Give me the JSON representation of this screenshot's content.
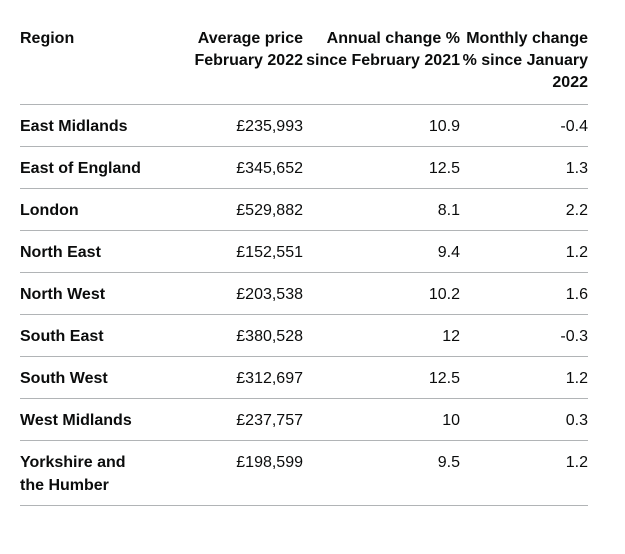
{
  "table": {
    "headers": {
      "region": "Region",
      "average_price": "Average price February 2022",
      "annual_change": "Annual change % since February 2021",
      "monthly_change": "Monthly change % since January 2022"
    },
    "rows": [
      {
        "region": "East Midlands",
        "average_price": "£235,993",
        "annual_change": "10.9",
        "monthly_change": "-0.4"
      },
      {
        "region": "East of England",
        "average_price": "£345,652",
        "annual_change": "12.5",
        "monthly_change": "1.3"
      },
      {
        "region": "London",
        "average_price": "£529,882",
        "annual_change": "8.1",
        "monthly_change": "2.2"
      },
      {
        "region": "North East",
        "average_price": "£152,551",
        "annual_change": "9.4",
        "monthly_change": "1.2"
      },
      {
        "region": "North West",
        "average_price": "£203,538",
        "annual_change": "10.2",
        "monthly_change": "1.6"
      },
      {
        "region": "South East",
        "average_price": "£380,528",
        "annual_change": "12",
        "monthly_change": "-0.3"
      },
      {
        "region": "South West",
        "average_price": "£312,697",
        "annual_change": "12.5",
        "monthly_change": "1.2"
      },
      {
        "region": "West Midlands",
        "average_price": "£237,757",
        "annual_change": "10",
        "monthly_change": "0.3"
      },
      {
        "region": "Yorkshire and the Humber",
        "average_price": "£198,599",
        "annual_change": "9.5",
        "monthly_change": "1.2"
      }
    ]
  }
}
